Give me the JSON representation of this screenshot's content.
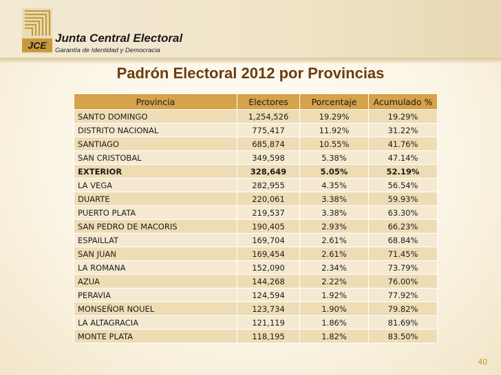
{
  "header": {
    "org_name": "Junta Central Electoral",
    "tagline": "Garantía de Identidad y Democracia",
    "logo_text": "JCE"
  },
  "title": "Padrón Electoral 2012 por Provincias",
  "table": {
    "columns": [
      "Provincia",
      "Electores",
      "Porcentaje",
      "Acumulado %"
    ],
    "rows": [
      {
        "provincia": "SANTO DOMINGO",
        "electores": "1,254,526",
        "porcentaje": "19.29%",
        "acumulado": "19.29%",
        "bold": false
      },
      {
        "provincia": "DISTRITO NACIONAL",
        "electores": "775,417",
        "porcentaje": "11.92%",
        "acumulado": "31.22%",
        "bold": false
      },
      {
        "provincia": "SANTIAGO",
        "electores": "685,874",
        "porcentaje": "10.55%",
        "acumulado": "41.76%",
        "bold": false
      },
      {
        "provincia": "SAN CRISTOBAL",
        "electores": "349,598",
        "porcentaje": "5.38%",
        "acumulado": "47.14%",
        "bold": false
      },
      {
        "provincia": "EXTERIOR",
        "electores": "328,649",
        "porcentaje": "5.05%",
        "acumulado": "52.19%",
        "bold": true
      },
      {
        "provincia": "LA VEGA",
        "electores": "282,955",
        "porcentaje": "4.35%",
        "acumulado": "56.54%",
        "bold": false
      },
      {
        "provincia": "DUARTE",
        "electores": "220,061",
        "porcentaje": "3.38%",
        "acumulado": "59.93%",
        "bold": false
      },
      {
        "provincia": "PUERTO PLATA",
        "electores": "219,537",
        "porcentaje": "3.38%",
        "acumulado": "63.30%",
        "bold": false
      },
      {
        "provincia": "SAN PEDRO DE MACORIS",
        "electores": "190,405",
        "porcentaje": "2.93%",
        "acumulado": "66.23%",
        "bold": false
      },
      {
        "provincia": "ESPAILLAT",
        "electores": "169,704",
        "porcentaje": "2.61%",
        "acumulado": "68.84%",
        "bold": false
      },
      {
        "provincia": "SAN JUAN",
        "electores": "169,454",
        "porcentaje": "2.61%",
        "acumulado": "71.45%",
        "bold": false
      },
      {
        "provincia": "LA ROMANA",
        "electores": "152,090",
        "porcentaje": "2.34%",
        "acumulado": "73.79%",
        "bold": false
      },
      {
        "provincia": "AZUA",
        "electores": "144,268",
        "porcentaje": "2.22%",
        "acumulado": "76.00%",
        "bold": false
      },
      {
        "provincia": "PERAVIA",
        "electores": "124,594",
        "porcentaje": "1.92%",
        "acumulado": "77.92%",
        "bold": false
      },
      {
        "provincia": "MONSEÑOR NOUEL",
        "electores": "123,734",
        "porcentaje": "1.90%",
        "acumulado": "79.82%",
        "bold": false
      },
      {
        "provincia": "LA ALTAGRACIA",
        "electores": "121,119",
        "porcentaje": "1.86%",
        "acumulado": "81.69%",
        "bold": false
      },
      {
        "provincia": "MONTE PLATA",
        "electores": "118,195",
        "porcentaje": "1.82%",
        "acumulado": "83.50%",
        "bold": false
      }
    ]
  },
  "slide_number": "40",
  "colors": {
    "title": "#6b3d0d",
    "header_cell": "#d6a24a",
    "row_dark": "#eedcb4",
    "row_light": "#f5ead1",
    "slide_number": "#c8962e"
  }
}
